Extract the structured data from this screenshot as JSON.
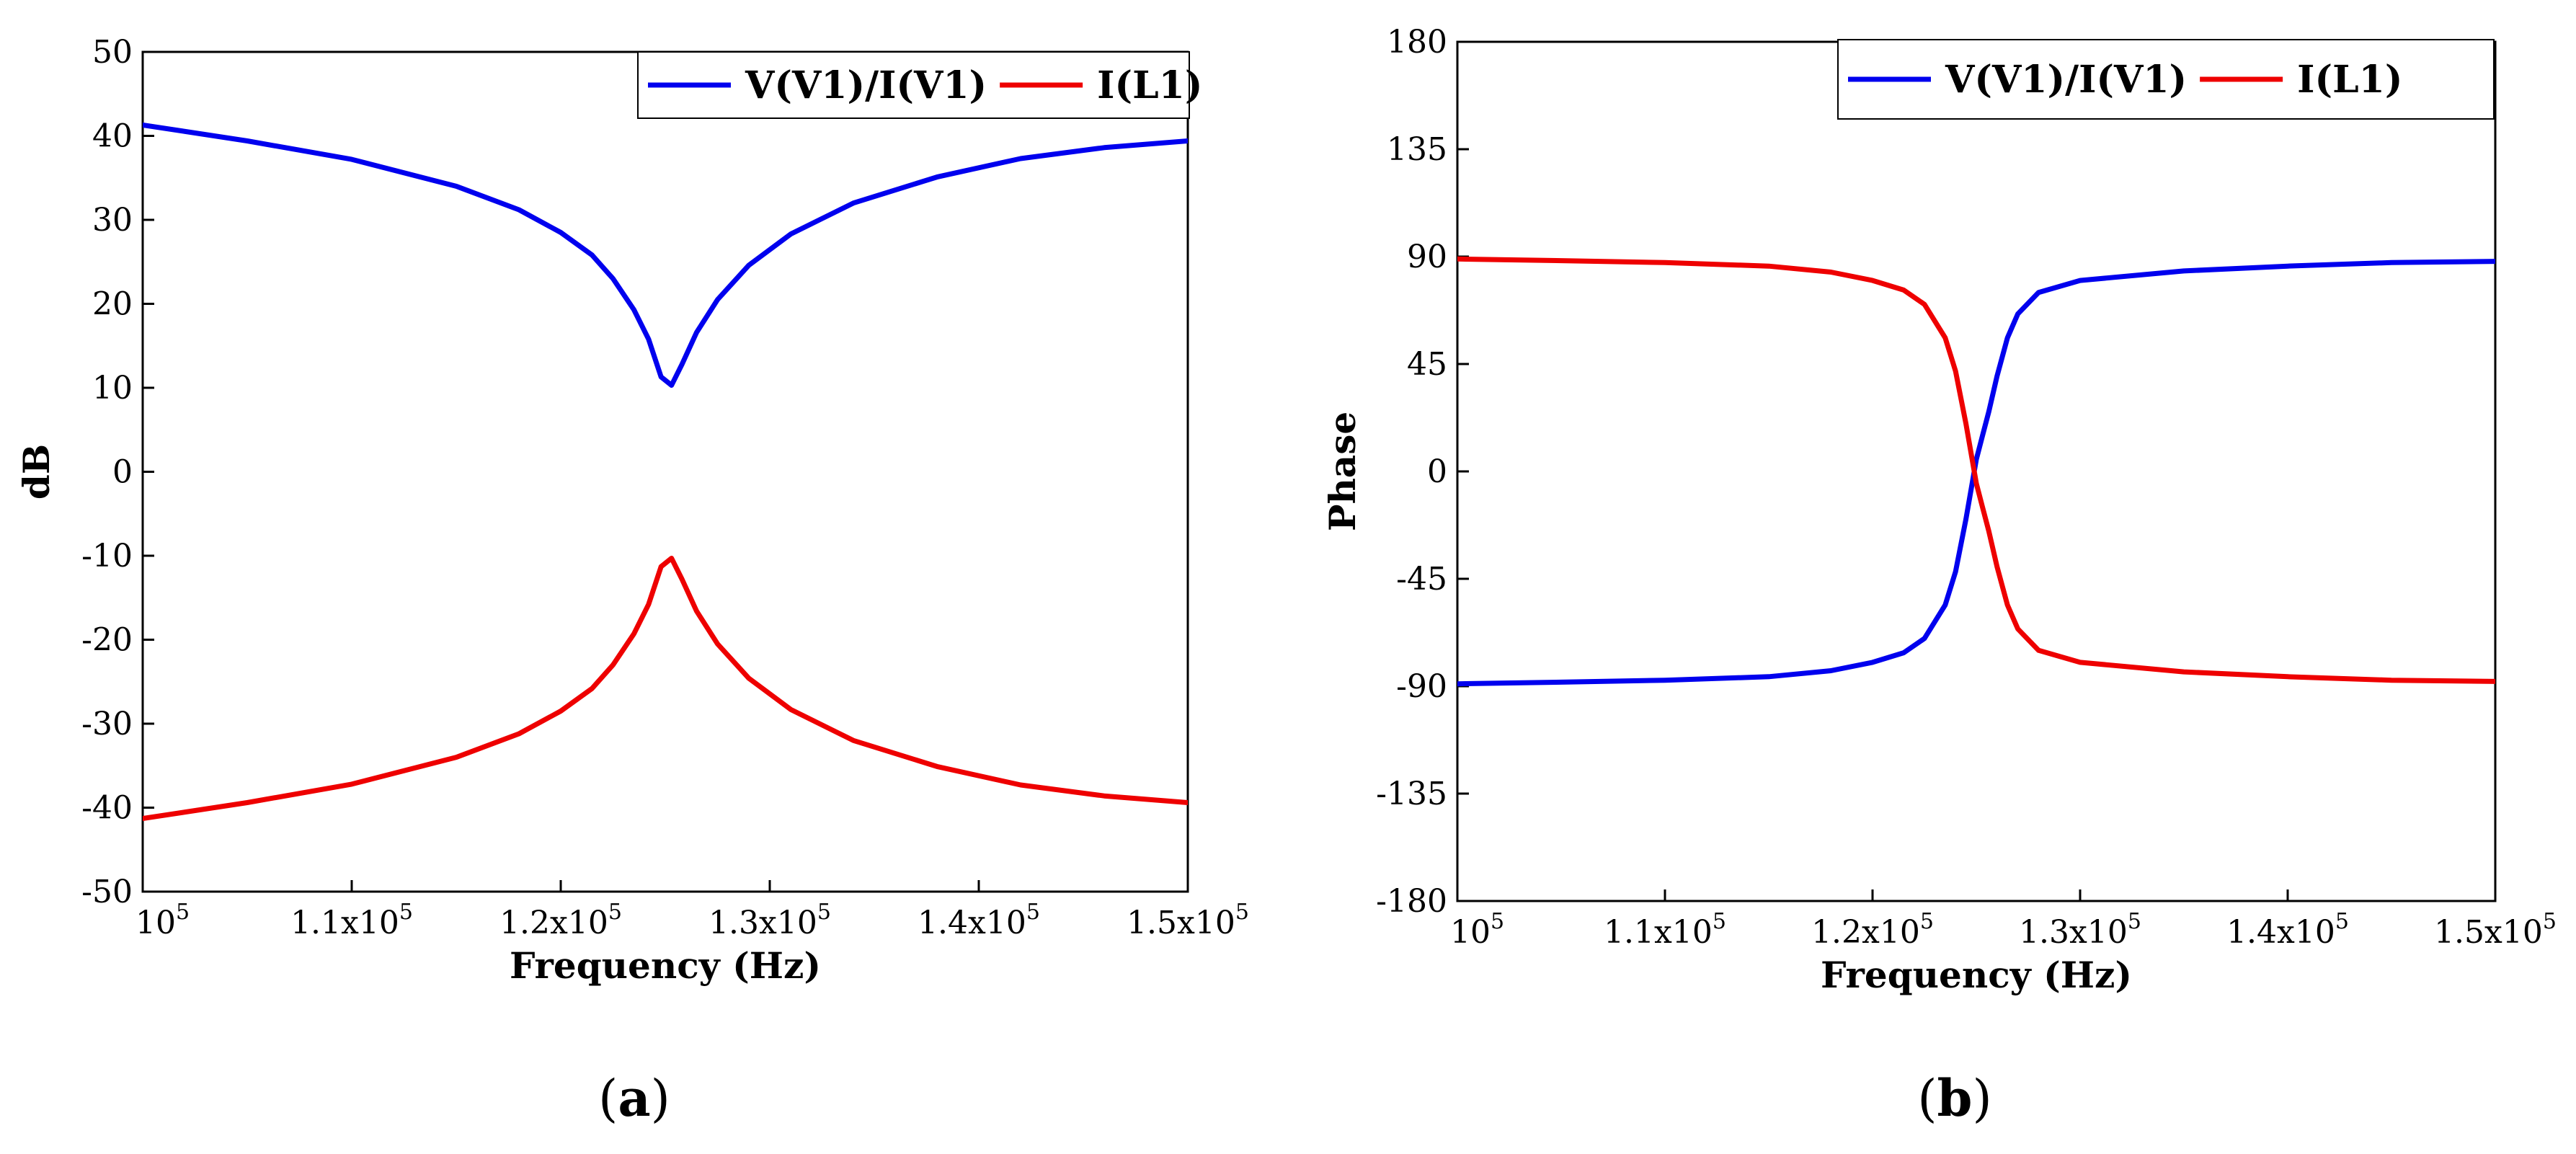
{
  "chart_data": [
    {
      "type": "line",
      "panel_label": "(a)",
      "panel_letter": "a",
      "xlabel": "Frequency (Hz)",
      "ylabel": "dB",
      "xlim": [
        100000,
        150000
      ],
      "ylim": [
        -50,
        50
      ],
      "x_ticks": [
        {
          "value": 100000,
          "mantissa": "10",
          "exponent": "5"
        },
        {
          "value": 110000,
          "mantissa": "1.1x10",
          "exponent": "5"
        },
        {
          "value": 120000,
          "mantissa": "1.2x10",
          "exponent": "5"
        },
        {
          "value": 130000,
          "mantissa": "1.3x10",
          "exponent": "5"
        },
        {
          "value": 140000,
          "mantissa": "1.4x10",
          "exponent": "5"
        },
        {
          "value": 150000,
          "mantissa": "1.5x10",
          "exponent": "5"
        }
      ],
      "y_ticks": [
        50,
        40,
        30,
        20,
        10,
        0,
        -10,
        -20,
        -30,
        -40,
        -50
      ],
      "legend": "top-right",
      "series": [
        {
          "name": "V(V1)/I(V1)",
          "color": "#0000ee",
          "x": [
            100000,
            105000,
            110000,
            115000,
            118000,
            120000,
            121500,
            122500,
            123500,
            124200,
            124800,
            125300,
            125800,
            126500,
            127500,
            129000,
            131000,
            134000,
            138000,
            142000,
            146000,
            150000
          ],
          "y": [
            41.3,
            39.4,
            37.2,
            34.0,
            31.2,
            28.5,
            25.8,
            23.0,
            19.3,
            15.8,
            11.3,
            10.3,
            12.8,
            16.6,
            20.5,
            24.6,
            28.3,
            32.0,
            35.1,
            37.3,
            38.6,
            39.4
          ]
        },
        {
          "name": "I(L1)",
          "color": "#ee0000",
          "x": [
            100000,
            105000,
            110000,
            115000,
            118000,
            120000,
            121500,
            122500,
            123500,
            124200,
            124800,
            125300,
            125800,
            126500,
            127500,
            129000,
            131000,
            134000,
            138000,
            142000,
            146000,
            150000
          ],
          "y": [
            -41.3,
            -39.4,
            -37.2,
            -34.0,
            -31.2,
            -28.5,
            -25.8,
            -23.0,
            -19.3,
            -15.8,
            -11.3,
            -10.3,
            -12.8,
            -16.6,
            -20.5,
            -24.6,
            -28.3,
            -32.0,
            -35.1,
            -37.3,
            -38.6,
            -39.4
          ]
        }
      ]
    },
    {
      "type": "line",
      "panel_label": "(b)",
      "panel_letter": "b",
      "xlabel": "Frequency (Hz)",
      "ylabel": "Phase",
      "xlim": [
        100000,
        150000
      ],
      "ylim": [
        -180,
        180
      ],
      "x_ticks": [
        {
          "value": 100000,
          "mantissa": "10",
          "exponent": "5"
        },
        {
          "value": 110000,
          "mantissa": "1.1x10",
          "exponent": "5"
        },
        {
          "value": 120000,
          "mantissa": "1.2x10",
          "exponent": "5"
        },
        {
          "value": 130000,
          "mantissa": "1.3x10",
          "exponent": "5"
        },
        {
          "value": 140000,
          "mantissa": "1.4x10",
          "exponent": "5"
        },
        {
          "value": 150000,
          "mantissa": "1.5x10",
          "exponent": "5"
        }
      ],
      "y_ticks": [
        180,
        135,
        90,
        45,
        0,
        -45,
        -90,
        -135,
        -180
      ],
      "legend": "top-right",
      "series": [
        {
          "name": "V(V1)/I(V1)",
          "color": "#0000ee",
          "x": [
            100000,
            105000,
            110000,
            115000,
            118000,
            120000,
            121500,
            122500,
            123500,
            124000,
            124500,
            125000,
            125300,
            125600,
            126000,
            126500,
            127000,
            128000,
            130000,
            135000,
            140000,
            145000,
            150000
          ],
          "y": [
            -89,
            -88.3,
            -87.5,
            -86,
            -83.5,
            -80,
            -76,
            -70,
            -56,
            -42,
            -20,
            5,
            15,
            25,
            40,
            56,
            66,
            75,
            80,
            84,
            86,
            87.5,
            88
          ]
        },
        {
          "name": "I(L1)",
          "color": "#ee0000",
          "x": [
            100000,
            105000,
            110000,
            115000,
            118000,
            120000,
            121500,
            122500,
            123500,
            124000,
            124500,
            125000,
            125300,
            125600,
            126000,
            126500,
            127000,
            128000,
            130000,
            135000,
            140000,
            145000,
            150000
          ],
          "y": [
            89,
            88.3,
            87.5,
            86,
            83.5,
            80,
            76,
            70,
            56,
            42,
            20,
            -5,
            -15,
            -25,
            -40,
            -56,
            -66,
            -75,
            -80,
            -84,
            -86,
            -87.5,
            -88
          ]
        }
      ]
    }
  ]
}
